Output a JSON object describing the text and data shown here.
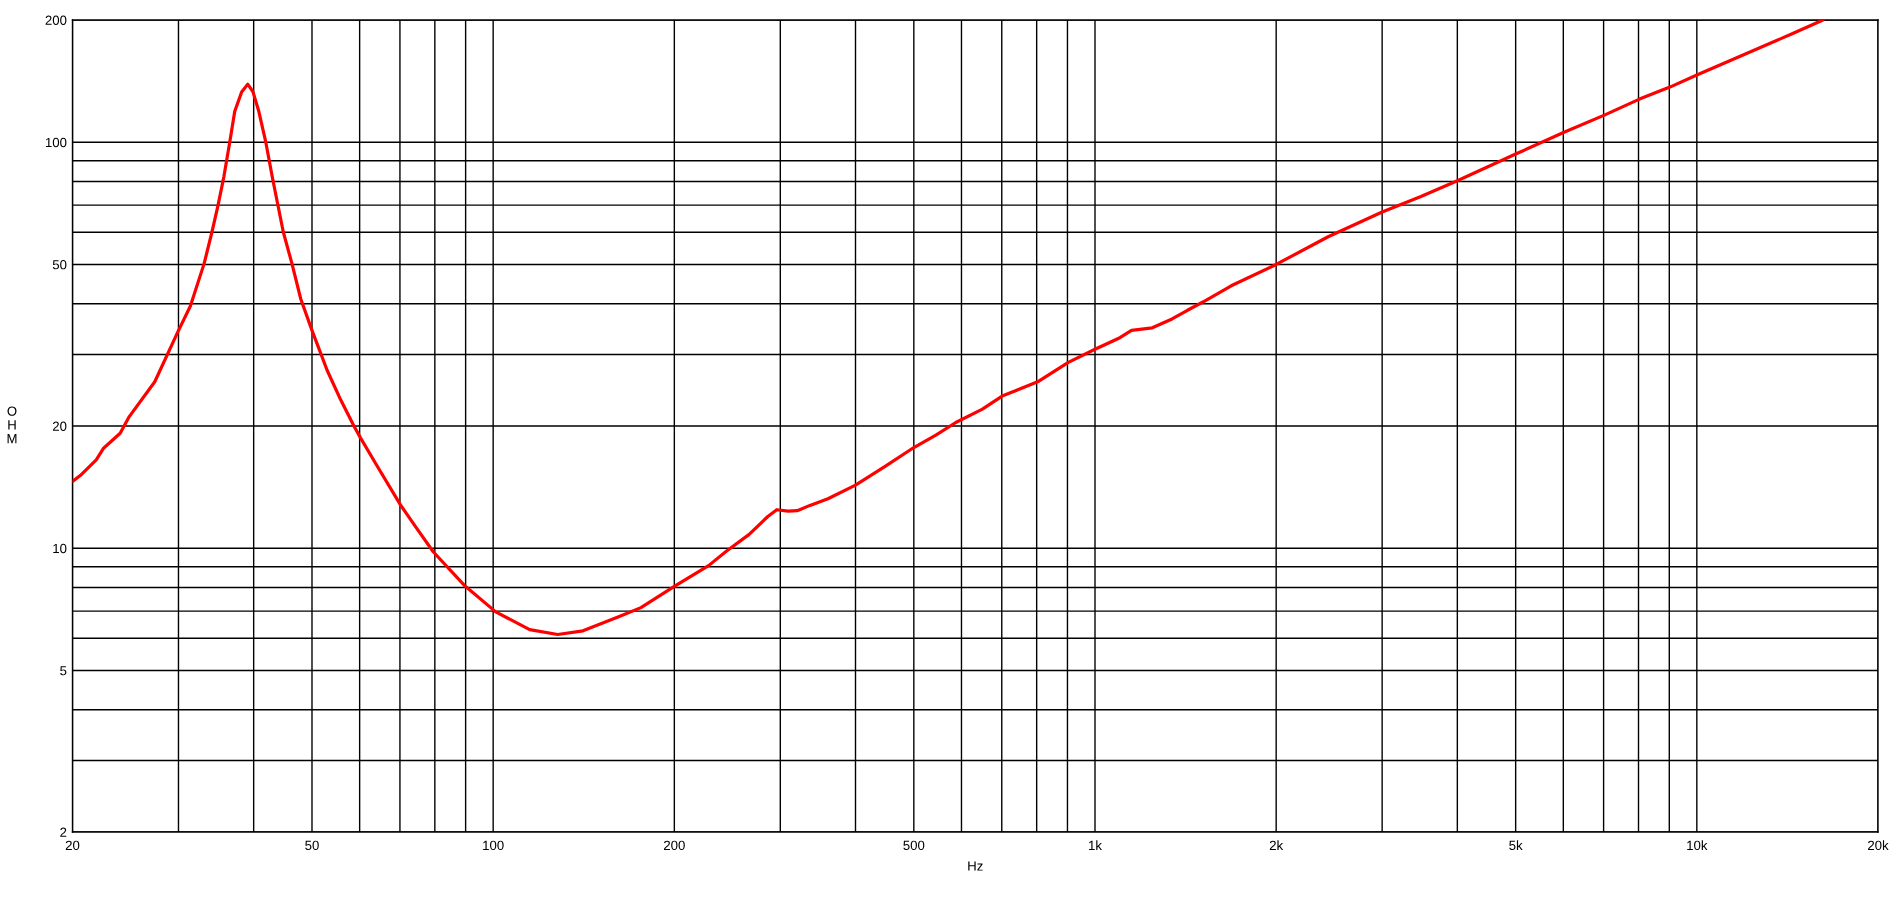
{
  "chart_data": {
    "type": "line",
    "xlabel": "Hz",
    "ylabel": "OHM",
    "log": "xy",
    "grid": true,
    "xlim": [
      20,
      20000
    ],
    "ylim": [
      2,
      200
    ],
    "xticks": [
      20,
      {
        "value": 30,
        "label": null
      },
      {
        "value": 40,
        "label": null
      },
      50,
      {
        "value": 60,
        "label": null
      },
      {
        "value": 70,
        "label": null
      },
      {
        "value": 80,
        "label": null
      },
      {
        "value": 90,
        "label": null
      },
      100,
      200,
      {
        "value": 300,
        "label": null
      },
      {
        "value": 400,
        "label": null
      },
      500,
      {
        "value": 600,
        "label": null
      },
      {
        "value": 700,
        "label": null
      },
      {
        "value": 800,
        "label": null
      },
      {
        "value": 900,
        "label": null
      },
      {
        "value": 1000,
        "label": "1k"
      },
      {
        "value": 2000,
        "label": "2k"
      },
      {
        "value": 3000,
        "label": null
      },
      {
        "value": 4000,
        "label": null
      },
      {
        "value": 5000,
        "label": "5k"
      },
      {
        "value": 6000,
        "label": null
      },
      {
        "value": 7000,
        "label": null
      },
      {
        "value": 8000,
        "label": null
      },
      {
        "value": 9000,
        "label": null
      },
      {
        "value": 10000,
        "label": "10k"
      },
      {
        "value": 20000,
        "label": "20k"
      }
    ],
    "yticks": [
      2,
      {
        "value": 3,
        "label": null
      },
      {
        "value": 4,
        "label": null
      },
      5,
      {
        "value": 6,
        "label": null
      },
      {
        "value": 7,
        "label": null
      },
      {
        "value": 8,
        "label": null
      },
      {
        "value": 9,
        "label": null
      },
      10,
      20,
      {
        "value": 30,
        "label": null
      },
      {
        "value": 40,
        "label": null
      },
      50,
      {
        "value": 60,
        "label": null
      },
      {
        "value": 70,
        "label": null
      },
      {
        "value": 80,
        "label": null
      },
      {
        "value": 90,
        "label": null
      },
      100,
      200
    ],
    "x": [
      20,
      20.6,
      21.9,
      22.5,
      24.0,
      24.8,
      27.4,
      29.9,
      31.4,
      33.1,
      34.1,
      34.9,
      35.7,
      36.5,
      37.2,
      38.2,
      39.1,
      39.9,
      40.8,
      41.9,
      43.0,
      44.8,
      46.3,
      47.9,
      50.0,
      53.0,
      55.8,
      58.7,
      60.2,
      63.9,
      70.1,
      74.3,
      79.5,
      89.5,
      101,
      115,
      128,
      141,
      162,
      176,
      200,
      228,
      244,
      266,
      286,
      296,
      309,
      320,
      336,
      360,
      400,
      448,
      500,
      544,
      587,
      650,
      701,
      803,
      903,
      1000,
      1100,
      1150,
      1245,
      1343,
      1422,
      1511,
      1684,
      2000,
      2440,
      3000,
      3480,
      4000,
      5000,
      6030,
      7020,
      8030,
      9020,
      10000,
      14400,
      16200
    ],
    "series": [
      {
        "color": "#ff0000",
        "values": [
          14.6,
          15.1,
          16.5,
          17.6,
          19.2,
          21.0,
          25.7,
          34.0,
          39.5,
          50.3,
          60.1,
          69.9,
          82.4,
          100,
          119,
          133,
          139,
          133,
          119,
          100,
          81.4,
          60.1,
          50.3,
          41.1,
          34.4,
          27.4,
          23.2,
          20.0,
          18.7,
          16.1,
          12.8,
          11.3,
          9.8,
          8.11,
          6.97,
          6.3,
          6.13,
          6.26,
          6.79,
          7.14,
          8.05,
          9.06,
          9.83,
          10.8,
          11.97,
          12.44,
          12.34,
          12.37,
          12.75,
          13.24,
          14.3,
          15.9,
          17.7,
          19.0,
          20.4,
          22.0,
          23.7,
          25.7,
          28.7,
          30.9,
          33.0,
          34.4,
          34.9,
          36.7,
          38.5,
          40.4,
          44.3,
          50.0,
          58.5,
          67.3,
          73.5,
          80.4,
          93.5,
          106,
          116.6,
          127.7,
          136.7,
          146.4,
          185,
          200
        ]
      }
    ]
  }
}
